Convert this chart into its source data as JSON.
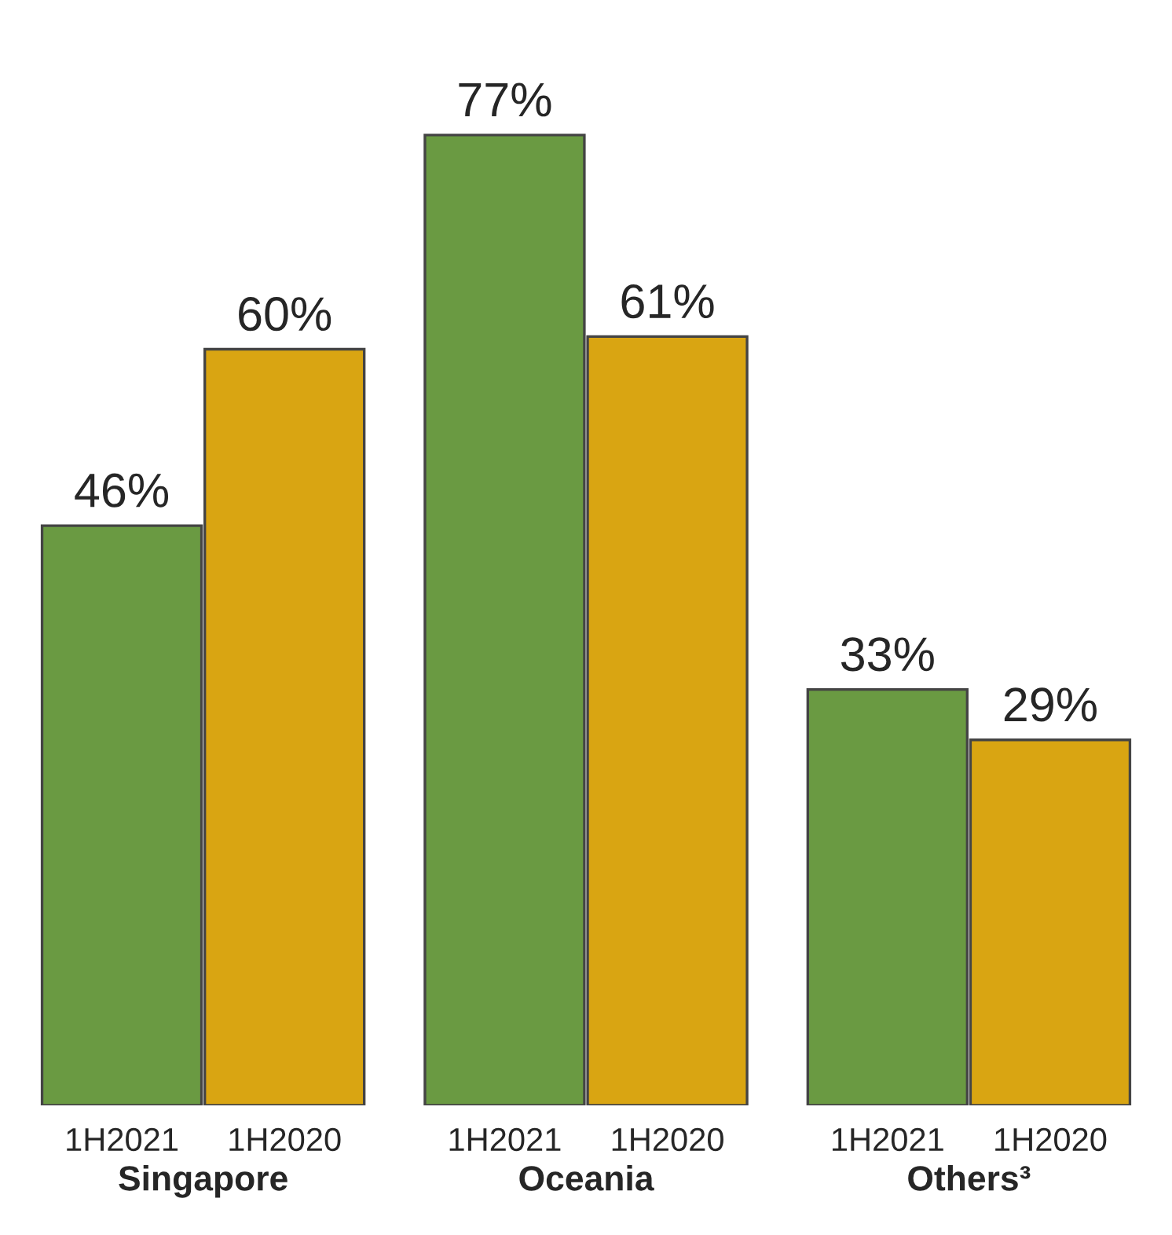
{
  "chart_data": {
    "type": "bar",
    "categories": [
      "Singapore",
      "Oceania",
      "Others³"
    ],
    "series": [
      {
        "name": "1H2021",
        "color": "#6a9a42",
        "values": [
          46,
          77,
          33
        ],
        "value_labels": [
          "46%",
          "77%",
          "33%"
        ]
      },
      {
        "name": "1H2020",
        "color": "#d9a512",
        "values": [
          60,
          61,
          29
        ],
        "value_labels": [
          "60%",
          "61%",
          "29%"
        ]
      }
    ]
  }
}
